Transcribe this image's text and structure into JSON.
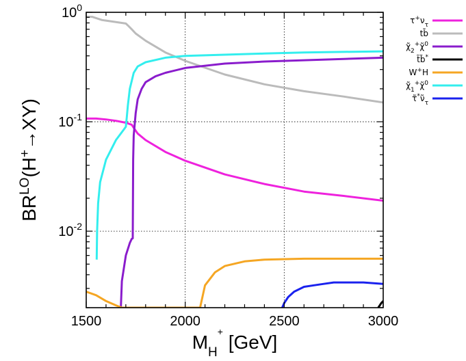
{
  "chart_data": {
    "type": "line",
    "title": "",
    "xlabel": "M_{H+} [GeV]",
    "ylabel": "BR^{LO}(H+→XY)",
    "xlim": [
      1500,
      3000
    ],
    "ylim": [
      0.002,
      1
    ],
    "yscale": "log",
    "grid": true,
    "legend_position": "outside-right",
    "x_ticks": [
      {
        "value": 1500,
        "label": "1500"
      },
      {
        "value": 2000,
        "label": "2000"
      },
      {
        "value": 2500,
        "label": "2500"
      },
      {
        "value": 3000,
        "label": "3000"
      }
    ],
    "y_ticks": [
      {
        "value": 1,
        "base": "10",
        "exp": "0"
      },
      {
        "value": 0.1,
        "base": "10",
        "exp": "-1"
      },
      {
        "value": 0.01,
        "base": "10",
        "exp": "-2"
      }
    ],
    "series": [
      {
        "name": "τ⁺ν_τ",
        "legend_html": "τ<tspan baseline-shift='super' font-size='9'>+</tspan>ν<tspan baseline-shift='sub' font-size='9'>τ</tspan>",
        "color": "#ee22dd",
        "x": [
          1500,
          1550,
          1600,
          1650,
          1700,
          1730,
          1740,
          1760,
          1800,
          1900,
          2000,
          2200,
          2400,
          2600,
          2800,
          3000
        ],
        "y": [
          0.107,
          0.107,
          0.105,
          0.102,
          0.098,
          0.094,
          0.088,
          0.078,
          0.068,
          0.053,
          0.044,
          0.033,
          0.027,
          0.023,
          0.021,
          0.019
        ]
      },
      {
        "name": "tb̄",
        "legend_html": "tb̄",
        "color": "#bbbbbb",
        "x": [
          1500,
          1530,
          1580,
          1600,
          1700,
          1710,
          1730,
          1750,
          1800,
          1900,
          2000,
          2200,
          2400,
          2600,
          2800,
          3000
        ],
        "y": [
          0.91,
          0.91,
          0.85,
          0.84,
          0.79,
          0.76,
          0.7,
          0.64,
          0.55,
          0.43,
          0.36,
          0.27,
          0.22,
          0.19,
          0.17,
          0.15
        ]
      },
      {
        "name": "χ̃₂⁺χ̃⁰",
        "legend_html": "χ̃<tspan baseline-shift='sub' font-size='9'>2</tspan><tspan baseline-shift='super' font-size='9'>+</tspan>χ̃<tspan baseline-shift='super' font-size='9'>0</tspan>",
        "color": "#8a1ccc",
        "x": [
          1675,
          1680,
          1700,
          1720,
          1730,
          1735,
          1737,
          1740,
          1750,
          1760,
          1780,
          1800,
          1850,
          1900,
          2000,
          2200,
          2400,
          2600,
          2800,
          3000
        ],
        "y": [
          0.002,
          0.0035,
          0.006,
          0.0078,
          0.0085,
          0.0086,
          0.045,
          0.075,
          0.12,
          0.16,
          0.2,
          0.23,
          0.26,
          0.28,
          0.31,
          0.34,
          0.355,
          0.365,
          0.375,
          0.385
        ]
      },
      {
        "name": "t̃b̃*",
        "legend_html": "t̃b̃<tspan baseline-shift='super' font-size='9'>*</tspan>",
        "color": "#000000",
        "x": [
          2975,
          2990,
          3000
        ],
        "y": [
          0.002,
          0.0022,
          0.0023
        ]
      },
      {
        "name": "W⁺H",
        "legend_html": "W<tspan baseline-shift='super' font-size='9'>+</tspan>H",
        "color": "#f5a623",
        "x": [
          1500,
          1550,
          1600,
          1650,
          1680,
          2075,
          2100,
          2150,
          2200,
          2300,
          2400,
          2600,
          2800,
          3000
        ],
        "y": [
          0.0028,
          0.0026,
          0.0023,
          0.0021,
          0.002,
          0.002,
          0.0032,
          0.0042,
          0.0048,
          0.0053,
          0.0055,
          0.0056,
          0.0056,
          0.0056
        ]
      },
      {
        "name": "χ̃₁⁺χ̃⁰",
        "legend_html": "χ̃<tspan baseline-shift='sub' font-size='9'>1</tspan><tspan baseline-shift='super' font-size='9'>+</tspan>χ̃<tspan baseline-shift='super' font-size='9'>0</tspan>",
        "color": "#33eeee",
        "x": [
          1553,
          1555,
          1560,
          1570,
          1600,
          1650,
          1690,
          1700,
          1705,
          1710,
          1720,
          1740,
          1760,
          1800,
          1900,
          2000,
          2200,
          2400,
          2600,
          2800,
          3000
        ],
        "y": [
          0.0055,
          0.01,
          0.018,
          0.028,
          0.045,
          0.068,
          0.085,
          0.09,
          0.11,
          0.14,
          0.2,
          0.28,
          0.32,
          0.35,
          0.385,
          0.4,
          0.41,
          0.42,
          0.43,
          0.435,
          0.44
        ]
      },
      {
        "name": "τ̃*ν̃_τ",
        "legend_html": "τ̃<tspan baseline-shift='super' font-size='9'>*</tspan>ν̃<tspan baseline-shift='sub' font-size='9'>τ</tspan>",
        "color": "#1a22ee",
        "x": [
          2490,
          2500,
          2520,
          2550,
          2600,
          2650,
          2700,
          2750,
          2800,
          2900,
          3000
        ],
        "y": [
          0.002,
          0.0022,
          0.0025,
          0.0028,
          0.0031,
          0.0032,
          0.0033,
          0.0034,
          0.0034,
          0.0034,
          0.0033
        ]
      }
    ]
  }
}
